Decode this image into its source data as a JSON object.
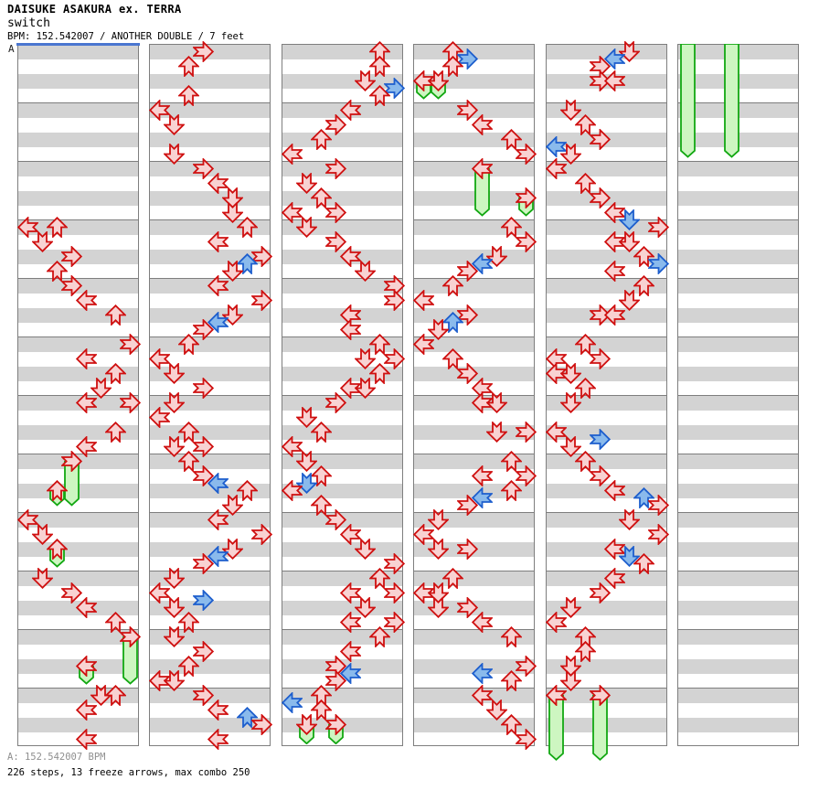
{
  "header": {
    "title": "DAISUKE ASAKURA ex. TERRA",
    "song": "switch",
    "info": "BPM: 152.542007 / ANOTHER DOUBLE / 7 feet"
  },
  "section_marker": "A",
  "footer": {
    "bpm_line": "A: 152.542007 BPM",
    "stats_line": "226 steps, 13 freeze arrows, max combo 250"
  },
  "colors": {
    "step_fill": "#f8d2d2",
    "step_border": "#cf1010",
    "eighth_fill": "#8abaec",
    "eighth_border": "#1d5ecd",
    "freeze_fill": "#cdf6c1",
    "freeze_border": "#12a812",
    "stripe_gray": "#d3d3d3",
    "grid_gray": "#7e7e7e",
    "start_line_blue": "#4a76d0",
    "footer_gray": "#8f8f8f"
  },
  "chart": {
    "columns": 6,
    "beats_per_column": 48,
    "slots_per_column": 8,
    "directions_by_slot": [
      "left",
      "down",
      "up",
      "right",
      "left",
      "down",
      "up",
      "right"
    ],
    "arrow_format": "[column, beatRow, slot, style] style: r=quarter-note red, b=eighth-note blue",
    "arrows": [
      [
        0,
        12,
        0,
        "r"
      ],
      [
        0,
        12,
        2,
        "r"
      ],
      [
        0,
        13,
        1,
        "r"
      ],
      [
        0,
        14,
        3,
        "r"
      ],
      [
        0,
        15,
        2,
        "r"
      ],
      [
        0,
        16,
        3,
        "r"
      ],
      [
        0,
        17,
        4,
        "r"
      ],
      [
        0,
        18,
        6,
        "r"
      ],
      [
        0,
        20,
        7,
        "r"
      ],
      [
        0,
        21,
        4,
        "r"
      ],
      [
        0,
        22,
        6,
        "r"
      ],
      [
        0,
        23,
        5,
        "r"
      ],
      [
        0,
        24,
        4,
        "r"
      ],
      [
        0,
        24,
        7,
        "r"
      ],
      [
        0,
        26,
        6,
        "r"
      ],
      [
        0,
        27,
        4,
        "r"
      ],
      [
        0,
        28,
        3,
        "r"
      ],
      [
        0,
        30,
        2,
        "r"
      ],
      [
        0,
        32,
        0,
        "r"
      ],
      [
        0,
        33,
        1,
        "r"
      ],
      [
        0,
        34,
        2,
        "r"
      ],
      [
        0,
        36,
        1,
        "r"
      ],
      [
        0,
        37,
        3,
        "r"
      ],
      [
        0,
        38,
        4,
        "r"
      ],
      [
        0,
        39,
        6,
        "r"
      ],
      [
        0,
        40,
        7,
        "r"
      ],
      [
        0,
        42,
        4,
        "r"
      ],
      [
        0,
        44,
        5,
        "r"
      ],
      [
        0,
        44,
        6,
        "r"
      ],
      [
        0,
        45,
        4,
        "r"
      ],
      [
        0,
        47,
        4,
        "r"
      ],
      [
        1,
        0,
        3,
        "r"
      ],
      [
        1,
        1,
        2,
        "r"
      ],
      [
        1,
        3,
        2,
        "r"
      ],
      [
        1,
        4,
        0,
        "r"
      ],
      [
        1,
        5,
        1,
        "r"
      ],
      [
        1,
        7,
        1,
        "r"
      ],
      [
        1,
        8,
        3,
        "r"
      ],
      [
        1,
        9,
        4,
        "r"
      ],
      [
        1,
        10,
        5,
        "r"
      ],
      [
        1,
        11,
        5,
        "r"
      ],
      [
        1,
        12,
        6,
        "r"
      ],
      [
        1,
        13,
        4,
        "r"
      ],
      [
        1,
        14,
        7,
        "r"
      ],
      [
        1,
        14.5,
        6,
        "b"
      ],
      [
        1,
        15,
        5,
        "r"
      ],
      [
        1,
        16,
        4,
        "r"
      ],
      [
        1,
        17,
        7,
        "r"
      ],
      [
        1,
        18,
        5,
        "r"
      ],
      [
        1,
        18.5,
        4,
        "b"
      ],
      [
        1,
        19,
        3,
        "r"
      ],
      [
        1,
        20,
        2,
        "r"
      ],
      [
        1,
        21,
        0,
        "r"
      ],
      [
        1,
        22,
        1,
        "r"
      ],
      [
        1,
        23,
        3,
        "r"
      ],
      [
        1,
        24,
        1,
        "r"
      ],
      [
        1,
        25,
        0,
        "r"
      ],
      [
        1,
        26,
        2,
        "r"
      ],
      [
        1,
        27,
        1,
        "r"
      ],
      [
        1,
        27,
        3,
        "r"
      ],
      [
        1,
        28,
        2,
        "r"
      ],
      [
        1,
        29,
        3,
        "r"
      ],
      [
        1,
        29.5,
        4,
        "b"
      ],
      [
        1,
        30,
        6,
        "r"
      ],
      [
        1,
        31,
        5,
        "r"
      ],
      [
        1,
        32,
        4,
        "r"
      ],
      [
        1,
        33,
        7,
        "r"
      ],
      [
        1,
        34,
        5,
        "r"
      ],
      [
        1,
        34.5,
        4,
        "b"
      ],
      [
        1,
        35,
        3,
        "r"
      ],
      [
        1,
        36,
        1,
        "r"
      ],
      [
        1,
        37,
        0,
        "r"
      ],
      [
        1,
        37.5,
        3,
        "b"
      ],
      [
        1,
        38,
        1,
        "r"
      ],
      [
        1,
        39,
        2,
        "r"
      ],
      [
        1,
        40,
        1,
        "r"
      ],
      [
        1,
        41,
        3,
        "r"
      ],
      [
        1,
        42,
        2,
        "r"
      ],
      [
        1,
        43,
        0,
        "r"
      ],
      [
        1,
        43,
        1,
        "r"
      ],
      [
        1,
        44,
        3,
        "r"
      ],
      [
        1,
        45,
        4,
        "r"
      ],
      [
        1,
        45.5,
        6,
        "b"
      ],
      [
        1,
        46,
        7,
        "r"
      ],
      [
        1,
        47,
        4,
        "r"
      ],
      [
        2,
        0,
        6,
        "r"
      ],
      [
        2,
        1,
        6,
        "r"
      ],
      [
        2,
        2,
        5,
        "r"
      ],
      [
        2,
        2.5,
        7,
        "b"
      ],
      [
        2,
        3,
        6,
        "r"
      ],
      [
        2,
        4,
        4,
        "r"
      ],
      [
        2,
        5,
        3,
        "r"
      ],
      [
        2,
        6,
        2,
        "r"
      ],
      [
        2,
        7,
        0,
        "r"
      ],
      [
        2,
        8,
        3,
        "r"
      ],
      [
        2,
        9,
        1,
        "r"
      ],
      [
        2,
        10,
        2,
        "r"
      ],
      [
        2,
        11,
        0,
        "r"
      ],
      [
        2,
        11,
        3,
        "r"
      ],
      [
        2,
        12,
        1,
        "r"
      ],
      [
        2,
        13,
        3,
        "r"
      ],
      [
        2,
        14,
        4,
        "r"
      ],
      [
        2,
        15,
        5,
        "r"
      ],
      [
        2,
        16,
        7,
        "r"
      ],
      [
        2,
        17,
        7,
        "r"
      ],
      [
        2,
        18,
        4,
        "r"
      ],
      [
        2,
        19,
        4,
        "r"
      ],
      [
        2,
        20,
        6,
        "r"
      ],
      [
        2,
        21,
        5,
        "r"
      ],
      [
        2,
        21,
        7,
        "r"
      ],
      [
        2,
        22,
        6,
        "r"
      ],
      [
        2,
        23,
        4,
        "r"
      ],
      [
        2,
        23,
        5,
        "r"
      ],
      [
        2,
        24,
        3,
        "r"
      ],
      [
        2,
        25,
        1,
        "r"
      ],
      [
        2,
        26,
        2,
        "r"
      ],
      [
        2,
        27,
        0,
        "r"
      ],
      [
        2,
        28,
        1,
        "r"
      ],
      [
        2,
        29,
        2,
        "r"
      ],
      [
        2,
        29.5,
        1,
        "b"
      ],
      [
        2,
        30,
        0,
        "r"
      ],
      [
        2,
        31,
        2,
        "r"
      ],
      [
        2,
        32,
        3,
        "r"
      ],
      [
        2,
        33,
        4,
        "r"
      ],
      [
        2,
        34,
        5,
        "r"
      ],
      [
        2,
        35,
        7,
        "r"
      ],
      [
        2,
        36,
        6,
        "r"
      ],
      [
        2,
        37,
        4,
        "r"
      ],
      [
        2,
        37,
        7,
        "r"
      ],
      [
        2,
        38,
        5,
        "r"
      ],
      [
        2,
        39,
        4,
        "r"
      ],
      [
        2,
        39,
        7,
        "r"
      ],
      [
        2,
        40,
        6,
        "r"
      ],
      [
        2,
        41,
        4,
        "r"
      ],
      [
        2,
        42,
        3,
        "r"
      ],
      [
        2,
        42.5,
        4,
        "b"
      ],
      [
        2,
        43,
        3,
        "r"
      ],
      [
        2,
        44,
        2,
        "r"
      ],
      [
        2,
        44.5,
        0,
        "b"
      ],
      [
        2,
        45,
        2,
        "r"
      ],
      [
        2,
        46,
        1,
        "r"
      ],
      [
        2,
        46,
        3,
        "r"
      ],
      [
        3,
        0,
        2,
        "r"
      ],
      [
        3,
        0.5,
        3,
        "b"
      ],
      [
        3,
        1,
        2,
        "r"
      ],
      [
        3,
        2,
        0,
        "r"
      ],
      [
        3,
        2,
        1,
        "r"
      ],
      [
        3,
        4,
        3,
        "r"
      ],
      [
        3,
        5,
        4,
        "r"
      ],
      [
        3,
        6,
        6,
        "r"
      ],
      [
        3,
        7,
        7,
        "r"
      ],
      [
        3,
        8,
        4,
        "r"
      ],
      [
        3,
        10,
        7,
        "r"
      ],
      [
        3,
        12,
        6,
        "r"
      ],
      [
        3,
        13,
        7,
        "r"
      ],
      [
        3,
        14,
        5,
        "r"
      ],
      [
        3,
        14.5,
        4,
        "b"
      ],
      [
        3,
        15,
        3,
        "r"
      ],
      [
        3,
        16,
        2,
        "r"
      ],
      [
        3,
        17,
        0,
        "r"
      ],
      [
        3,
        18,
        3,
        "r"
      ],
      [
        3,
        18.5,
        2,
        "b"
      ],
      [
        3,
        19,
        1,
        "r"
      ],
      [
        3,
        20,
        0,
        "r"
      ],
      [
        3,
        21,
        2,
        "r"
      ],
      [
        3,
        22,
        3,
        "r"
      ],
      [
        3,
        23,
        4,
        "r"
      ],
      [
        3,
        24,
        4,
        "r"
      ],
      [
        3,
        24,
        5,
        "r"
      ],
      [
        3,
        26,
        5,
        "r"
      ],
      [
        3,
        26,
        7,
        "r"
      ],
      [
        3,
        28,
        6,
        "r"
      ],
      [
        3,
        29,
        4,
        "r"
      ],
      [
        3,
        29,
        7,
        "r"
      ],
      [
        3,
        30,
        6,
        "r"
      ],
      [
        3,
        30.5,
        4,
        "b"
      ],
      [
        3,
        31,
        3,
        "r"
      ],
      [
        3,
        32,
        1,
        "r"
      ],
      [
        3,
        33,
        0,
        "r"
      ],
      [
        3,
        34,
        1,
        "r"
      ],
      [
        3,
        34,
        3,
        "r"
      ],
      [
        3,
        36,
        2,
        "r"
      ],
      [
        3,
        37,
        0,
        "r"
      ],
      [
        3,
        37,
        1,
        "r"
      ],
      [
        3,
        38,
        1,
        "r"
      ],
      [
        3,
        38,
        3,
        "r"
      ],
      [
        3,
        39,
        4,
        "r"
      ],
      [
        3,
        40,
        6,
        "r"
      ],
      [
        3,
        42,
        7,
        "r"
      ],
      [
        3,
        42.5,
        4,
        "b"
      ],
      [
        3,
        43,
        6,
        "r"
      ],
      [
        3,
        44,
        4,
        "r"
      ],
      [
        3,
        45,
        5,
        "r"
      ],
      [
        3,
        46,
        6,
        "r"
      ],
      [
        3,
        47,
        7,
        "r"
      ],
      [
        4,
        0,
        5,
        "r"
      ],
      [
        4,
        0.5,
        4,
        "b"
      ],
      [
        4,
        1,
        3,
        "r"
      ],
      [
        4,
        2,
        3,
        "r"
      ],
      [
        4,
        2,
        4,
        "r"
      ],
      [
        4,
        4,
        1,
        "r"
      ],
      [
        4,
        5,
        2,
        "r"
      ],
      [
        4,
        6,
        3,
        "r"
      ],
      [
        4,
        6.5,
        0,
        "b"
      ],
      [
        4,
        7,
        1,
        "r"
      ],
      [
        4,
        8,
        0,
        "r"
      ],
      [
        4,
        9,
        2,
        "r"
      ],
      [
        4,
        10,
        3,
        "r"
      ],
      [
        4,
        11,
        4,
        "r"
      ],
      [
        4,
        11.5,
        5,
        "b"
      ],
      [
        4,
        12,
        7,
        "r"
      ],
      [
        4,
        13,
        4,
        "r"
      ],
      [
        4,
        13,
        5,
        "r"
      ],
      [
        4,
        14,
        6,
        "r"
      ],
      [
        4,
        14.5,
        7,
        "b"
      ],
      [
        4,
        15,
        4,
        "r"
      ],
      [
        4,
        16,
        6,
        "r"
      ],
      [
        4,
        17,
        5,
        "r"
      ],
      [
        4,
        18,
        3,
        "r"
      ],
      [
        4,
        18,
        4,
        "r"
      ],
      [
        4,
        20,
        2,
        "r"
      ],
      [
        4,
        21,
        0,
        "r"
      ],
      [
        4,
        21,
        3,
        "r"
      ],
      [
        4,
        22,
        0,
        "r"
      ],
      [
        4,
        22,
        1,
        "r"
      ],
      [
        4,
        23,
        2,
        "r"
      ],
      [
        4,
        24,
        1,
        "r"
      ],
      [
        4,
        26,
        0,
        "r"
      ],
      [
        4,
        26.5,
        3,
        "b"
      ],
      [
        4,
        27,
        1,
        "r"
      ],
      [
        4,
        28,
        2,
        "r"
      ],
      [
        4,
        29,
        3,
        "r"
      ],
      [
        4,
        30,
        4,
        "r"
      ],
      [
        4,
        30.5,
        6,
        "b"
      ],
      [
        4,
        31,
        7,
        "r"
      ],
      [
        4,
        32,
        5,
        "r"
      ],
      [
        4,
        33,
        7,
        "r"
      ],
      [
        4,
        34,
        4,
        "r"
      ],
      [
        4,
        34.5,
        5,
        "b"
      ],
      [
        4,
        35,
        6,
        "r"
      ],
      [
        4,
        36,
        4,
        "r"
      ],
      [
        4,
        37,
        3,
        "r"
      ],
      [
        4,
        38,
        1,
        "r"
      ],
      [
        4,
        39,
        0,
        "r"
      ],
      [
        4,
        40,
        2,
        "r"
      ],
      [
        4,
        41,
        2,
        "r"
      ],
      [
        4,
        42,
        1,
        "r"
      ],
      [
        4,
        43,
        1,
        "r"
      ],
      [
        4,
        44,
        0,
        "r"
      ],
      [
        4,
        44,
        3,
        "r"
      ]
    ],
    "freeze_format": "[column, headRow|null, slot, endRow] null head = continuation bar from column top",
    "freezes": [
      [
        0,
        28,
        3,
        31.6
      ],
      [
        0,
        30,
        2,
        31.6
      ],
      [
        0,
        34,
        2,
        35.8
      ],
      [
        0,
        40,
        7,
        43.8
      ],
      [
        0,
        42,
        4,
        43.8
      ],
      [
        2,
        46,
        1,
        47.9
      ],
      [
        2,
        46,
        3,
        47.9
      ],
      [
        3,
        2,
        0,
        3.8
      ],
      [
        3,
        2,
        1,
        3.8
      ],
      [
        3,
        8,
        4,
        11.8
      ],
      [
        3,
        10,
        7,
        11.8
      ],
      [
        4,
        44,
        0,
        49
      ],
      [
        4,
        44,
        3,
        49
      ],
      [
        5,
        null,
        0,
        7.8
      ],
      [
        5,
        null,
        3,
        7.8
      ]
    ]
  }
}
